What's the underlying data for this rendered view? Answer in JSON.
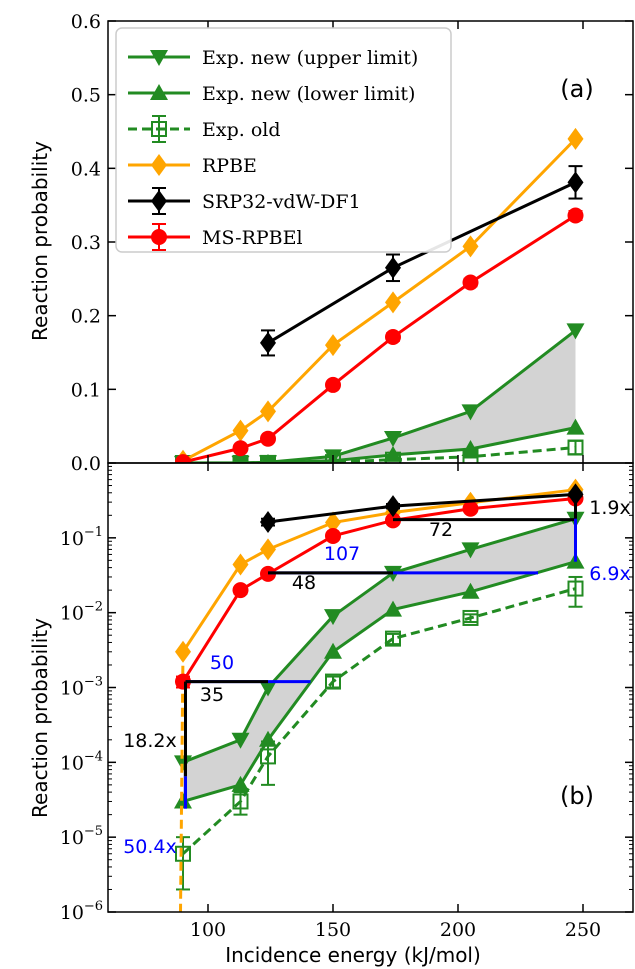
{
  "chart_data": [
    {
      "panel": "(a)",
      "type": "line",
      "ylabel": "Reaction probability",
      "xlabel": "",
      "xlim": [
        60,
        270
      ],
      "ylim": [
        0,
        0.6
      ],
      "yscale": "linear",
      "y_ticks": [
        "0.0",
        "0.1",
        "0.2",
        "0.3",
        "0.4",
        "0.5",
        "0.6"
      ],
      "y_tick_values": [
        0,
        0.1,
        0.2,
        0.3,
        0.4,
        0.5,
        0.6
      ],
      "legend": {
        "placement": "top-left",
        "entries": [
          {
            "label": "Exp. new (upper limit)",
            "series": "exp_upper"
          },
          {
            "label": "Exp. new (lower limit)",
            "series": "exp_lower"
          },
          {
            "label": "Exp. old",
            "series": "exp_old"
          },
          {
            "label": "RPBE",
            "series": "rpbe"
          },
          {
            "label": "SRP32-vdW-DF1",
            "series": "srp32"
          },
          {
            "label": "MS-RPBEl",
            "series": "msrpbel"
          }
        ]
      },
      "series": [
        {
          "key": "exp_upper",
          "color": "#228B22",
          "marker": "triangle-down",
          "line": "solid",
          "x": [
            90,
            113,
            124,
            150,
            174,
            205,
            247
          ],
          "y": [
            0.0001,
            0.0002,
            0.001,
            0.009,
            0.034,
            0.07,
            0.18
          ]
        },
        {
          "key": "exp_lower",
          "color": "#228B22",
          "marker": "triangle-up",
          "line": "solid",
          "x": [
            90,
            113,
            124,
            150,
            174,
            205,
            247
          ],
          "y": [
            3e-05,
            5e-05,
            0.0002,
            0.003,
            0.011,
            0.019,
            0.048
          ]
        },
        {
          "key": "exp_old",
          "color": "#228B22",
          "marker": "square-open",
          "line": "dashed",
          "x": [
            90,
            113,
            124,
            150,
            174,
            205,
            247
          ],
          "y": [
            6e-06,
            3e-05,
            0.00012,
            0.0012,
            0.0045,
            0.0085,
            0.021
          ],
          "yerr": [
            4e-06,
            1e-05,
            7e-05,
            0.0002,
            0.0007,
            0.001,
            0.009
          ]
        },
        {
          "key": "rpbe",
          "color": "#FFA500",
          "marker": "diamond",
          "line": "solid",
          "x": [
            90,
            113,
            124,
            150,
            174,
            205,
            247
          ],
          "y": [
            0.003,
            0.044,
            0.07,
            0.16,
            0.218,
            0.294,
            0.44
          ]
        },
        {
          "key": "srp32",
          "color": "#000000",
          "marker": "diamond",
          "line": "solid",
          "x": [
            124,
            174,
            247
          ],
          "y": [
            0.163,
            0.265,
            0.381
          ],
          "yerr": [
            0.017,
            0.018,
            0.022
          ]
        },
        {
          "key": "msrpbel",
          "color": "#FF0000",
          "marker": "circle",
          "line": "solid",
          "x": [
            90,
            113,
            124,
            150,
            174,
            205,
            247
          ],
          "y": [
            0.0012,
            0.02,
            0.033,
            0.106,
            0.171,
            0.245,
            0.336
          ],
          "yerr": [
            0.0002,
            0.002,
            0.003,
            0.004,
            0.005,
            0.005,
            0.006
          ]
        }
      ],
      "shaded_band": {
        "between": [
          "exp_lower",
          "exp_upper"
        ],
        "color": "#D3D3D3"
      }
    },
    {
      "panel": "(b)",
      "type": "line",
      "ylabel": "Reaction probability",
      "xlabel": "Incidence energy (kJ/mol)",
      "xlim": [
        60,
        270
      ],
      "ylim": [
        1e-06,
        1
      ],
      "yscale": "log",
      "x_ticks": [
        "100",
        "150",
        "200",
        "250"
      ],
      "x_tick_values": [
        100,
        150,
        200,
        250
      ],
      "y_tick_exponents": [
        "−6",
        "−5",
        "−4",
        "−3",
        "−2",
        "−1"
      ],
      "y_tick_values": [
        1e-06,
        1e-05,
        0.0001,
        0.001,
        0.01,
        0.1
      ],
      "y_tick_base": "10",
      "dashed_rpbe_extension_note": "RPBE continues as dashed orange below the lowest energy",
      "annotations": [
        {
          "text": "50",
          "color": "#0000FF"
        },
        {
          "text": "35",
          "color": "#000000"
        },
        {
          "text": "18.2x",
          "color": "#000000"
        },
        {
          "text": "50.4x",
          "color": "#0000FF"
        },
        {
          "text": "107",
          "color": "#0000FF"
        },
        {
          "text": "48",
          "color": "#000000"
        },
        {
          "text": "72",
          "color": "#000000"
        },
        {
          "text": "1.9x",
          "color": "#000000"
        },
        {
          "text": "6.9x",
          "color": "#0000FF"
        }
      ]
    }
  ],
  "colors": {
    "exp": "#228B22",
    "rpbe": "#FFA500",
    "srp32": "#000000",
    "msrpbel": "#FF0000",
    "band": "#D3D3D3",
    "annot_blue": "#0000FF"
  }
}
